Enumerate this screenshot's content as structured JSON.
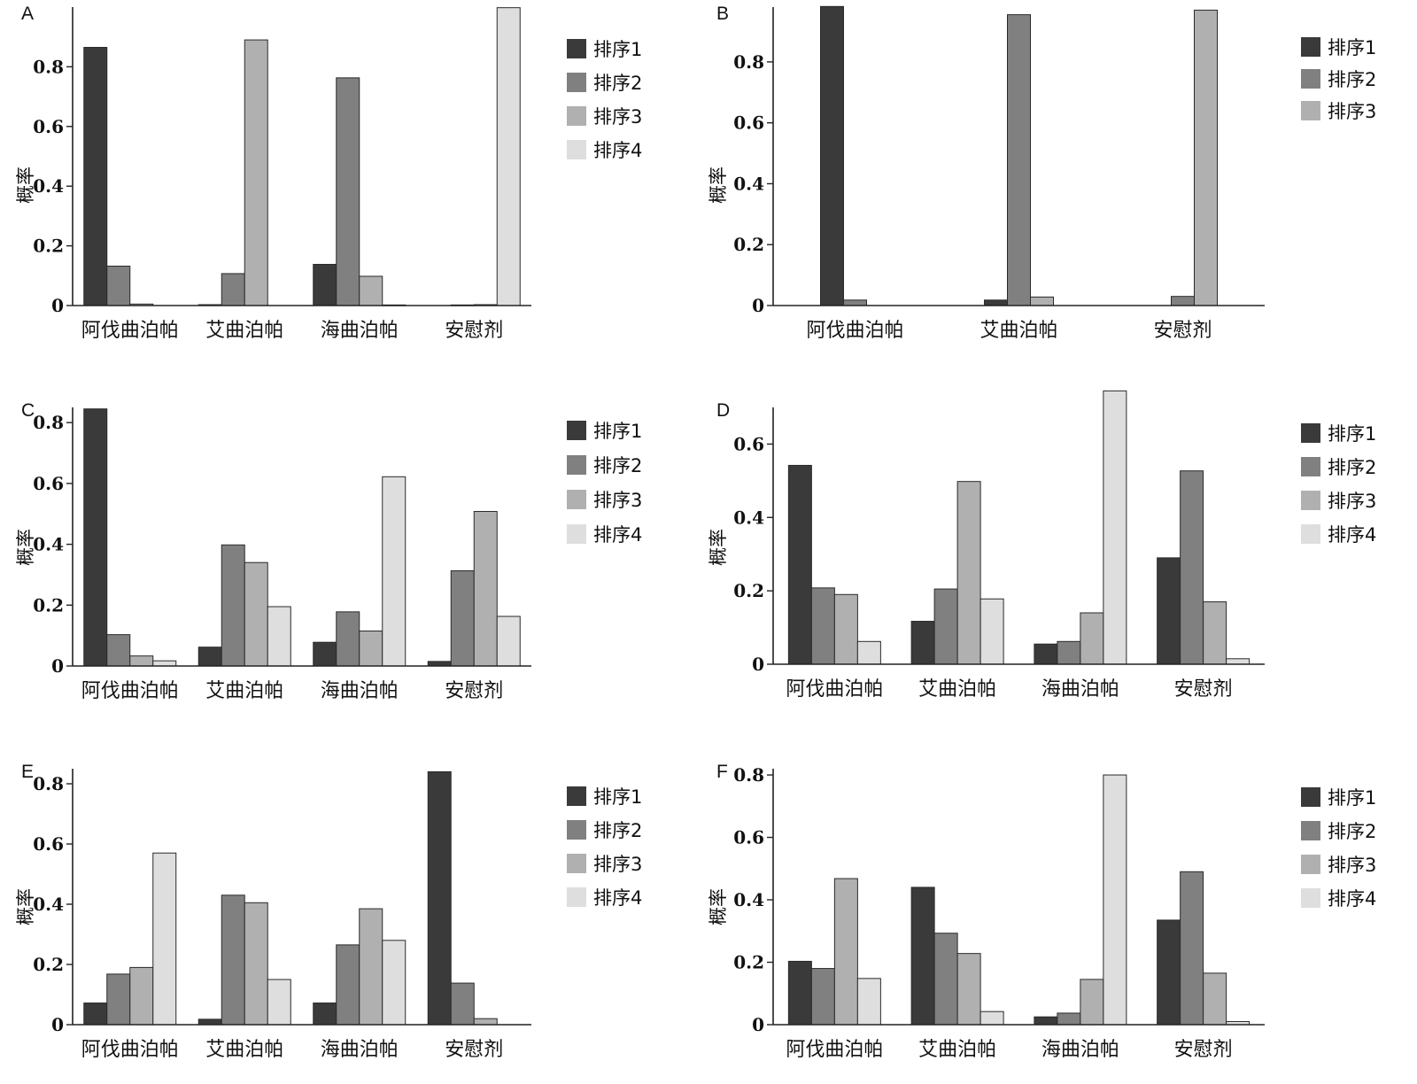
{
  "colors": [
    "#3a3a3a",
    "#808080",
    "#b0b0b0",
    "#dedede"
  ],
  "chart_data": [
    {
      "panel": "A",
      "type": "bar",
      "ylabel": "概率",
      "ylim": [
        0,
        1.0
      ],
      "yticks": [
        0,
        0.2,
        0.4,
        0.6,
        0.8
      ],
      "ytick_labels": [
        "0",
        "0.2",
        "0.4",
        "0.6",
        "0.8"
      ],
      "categories": [
        "阿伐曲泊帕",
        "艾曲泊帕",
        "海曲泊帕",
        "安慰剂"
      ],
      "series": [
        {
          "name": "排序1",
          "values": [
            0.865,
            0.003,
            0.138,
            0.0
          ]
        },
        {
          "name": "排序2",
          "values": [
            0.132,
            0.107,
            0.763,
            0.002
          ]
        },
        {
          "name": "排序3",
          "values": [
            0.005,
            0.89,
            0.098,
            0.003
          ]
        },
        {
          "name": "排序4",
          "values": [
            0.0,
            0.0,
            0.002,
            0.998
          ]
        }
      ],
      "legend": "right"
    },
    {
      "panel": "B",
      "type": "bar",
      "ylabel": "概率",
      "ylim": [
        0,
        0.98
      ],
      "yticks": [
        0,
        0.2,
        0.4,
        0.6,
        0.8
      ],
      "ytick_labels": [
        "0",
        "0.2",
        "0.4",
        "0.6",
        "0.8"
      ],
      "categories": [
        "阿伐曲泊帕",
        "艾曲泊帕",
        "安慰剂"
      ],
      "series": [
        {
          "name": "排序1",
          "values": [
            0.982,
            0.018,
            0.0
          ]
        },
        {
          "name": "排序2",
          "values": [
            0.018,
            0.955,
            0.03
          ]
        },
        {
          "name": "排序3",
          "values": [
            0.0,
            0.028,
            0.97
          ]
        }
      ],
      "legend": "right"
    },
    {
      "panel": "C",
      "type": "bar",
      "ylabel": "概率",
      "ylim": [
        0,
        0.85
      ],
      "yticks": [
        0,
        0.2,
        0.4,
        0.6,
        0.8
      ],
      "ytick_labels": [
        "0",
        "0.2",
        "0.4",
        "0.6",
        "0.8"
      ],
      "categories": [
        "阿伐曲泊帕",
        "艾曲泊帕",
        "海曲泊帕",
        "安慰剂"
      ],
      "series": [
        {
          "name": "排序1",
          "values": [
            0.845,
            0.062,
            0.078,
            0.015
          ]
        },
        {
          "name": "排序2",
          "values": [
            0.103,
            0.398,
            0.178,
            0.313
          ]
        },
        {
          "name": "排序3",
          "values": [
            0.033,
            0.34,
            0.115,
            0.508
          ]
        },
        {
          "name": "排序4",
          "values": [
            0.017,
            0.195,
            0.622,
            0.163
          ]
        }
      ],
      "legend": "right"
    },
    {
      "panel": "D",
      "type": "bar",
      "ylabel": "概率",
      "ylim": [
        0,
        0.7
      ],
      "yticks": [
        0,
        0.2,
        0.4,
        0.6
      ],
      "ytick_labels": [
        "0",
        "0.2",
        "0.4",
        "0.6"
      ],
      "categories": [
        "阿伐曲泊帕",
        "艾曲泊帕",
        "海曲泊帕",
        "安慰剂"
      ],
      "series": [
        {
          "name": "排序1",
          "values": [
            0.542,
            0.117,
            0.055,
            0.29
          ]
        },
        {
          "name": "排序2",
          "values": [
            0.208,
            0.205,
            0.062,
            0.527
          ]
        },
        {
          "name": "排序3",
          "values": [
            0.19,
            0.498,
            0.14,
            0.17
          ]
        },
        {
          "name": "排序4",
          "values": [
            0.062,
            0.178,
            0.745,
            0.015
          ]
        }
      ],
      "legend": "right"
    },
    {
      "panel": "E",
      "type": "bar",
      "ylabel": "概率",
      "ylim": [
        0,
        0.85
      ],
      "yticks": [
        0,
        0.2,
        0.4,
        0.6,
        0.8
      ],
      "ytick_labels": [
        "0",
        "0.2",
        "0.4",
        "0.6",
        "0.8"
      ],
      "categories": [
        "阿伐曲泊帕",
        "艾曲泊帕",
        "海曲泊帕",
        "安慰剂"
      ],
      "series": [
        {
          "name": "排序1",
          "values": [
            0.072,
            0.018,
            0.072,
            0.84
          ]
        },
        {
          "name": "排序2",
          "values": [
            0.168,
            0.43,
            0.265,
            0.138
          ]
        },
        {
          "name": "排序3",
          "values": [
            0.19,
            0.405,
            0.385,
            0.02
          ]
        },
        {
          "name": "排序4",
          "values": [
            0.57,
            0.15,
            0.28,
            0.0
          ]
        }
      ],
      "legend": "right"
    },
    {
      "panel": "F",
      "type": "bar",
      "ylabel": "概率",
      "ylim": [
        0,
        0.82
      ],
      "yticks": [
        0,
        0.2,
        0.4,
        0.6,
        0.8
      ],
      "ytick_labels": [
        "0",
        "0.2",
        "0.4",
        "0.6",
        "0.8"
      ],
      "categories": [
        "阿伐曲泊帕",
        "艾曲泊帕",
        "海曲泊帕",
        "安慰剂"
      ],
      "series": [
        {
          "name": "排序1",
          "values": [
            0.203,
            0.44,
            0.025,
            0.335
          ]
        },
        {
          "name": "排序2",
          "values": [
            0.18,
            0.293,
            0.037,
            0.49
          ]
        },
        {
          "name": "排序3",
          "values": [
            0.468,
            0.228,
            0.145,
            0.165
          ]
        },
        {
          "name": "排序4",
          "values": [
            0.148,
            0.042,
            0.8,
            0.01
          ]
        }
      ],
      "legend": "right"
    }
  ]
}
